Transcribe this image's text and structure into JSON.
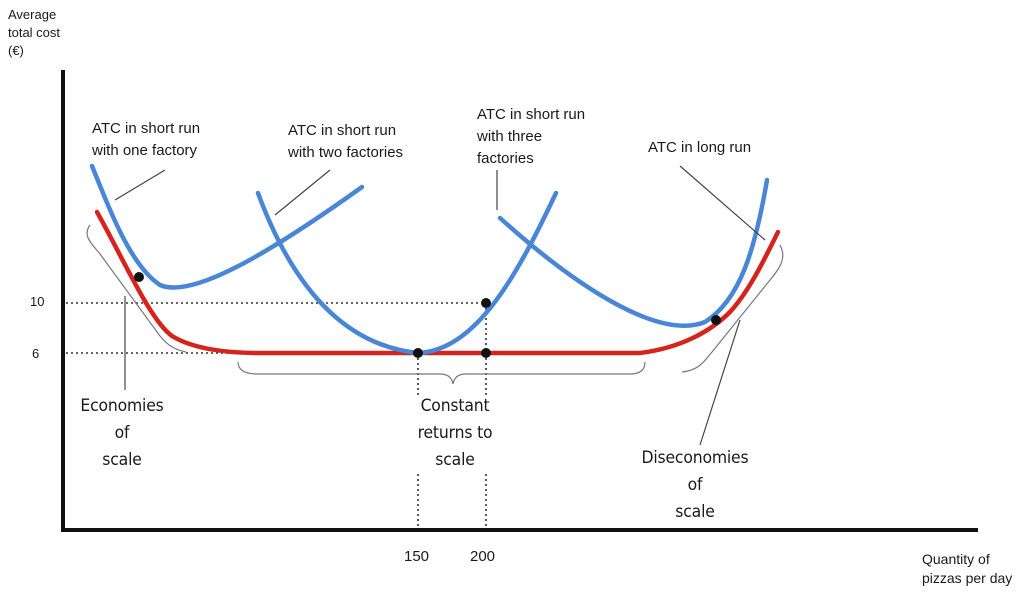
{
  "colors": {
    "short_run": "#4a86d6",
    "long_run": "#d4241c",
    "axis": "#111111",
    "dots": "#111111"
  },
  "y_axis": {
    "title_lines": [
      "Average",
      "total cost",
      "(€)"
    ],
    "ticks": [
      "10",
      "6"
    ]
  },
  "x_axis": {
    "title_lines": [
      "Quantity of",
      "pizzas per day"
    ],
    "ticks": [
      "150",
      "200"
    ]
  },
  "curve_labels": {
    "sr_one": [
      "ATC in short run",
      "with one factory"
    ],
    "sr_two": [
      "ATC in short run",
      "with two factories"
    ],
    "sr_three": [
      "ATC in short run",
      "with three",
      "factories"
    ],
    "long_run": [
      "ATC in long run"
    ]
  },
  "region_labels": {
    "economies": [
      "Economies",
      "of",
      "scale"
    ],
    "constant": [
      "Constant",
      "returns to",
      "scale"
    ],
    "diseconomies": [
      "Diseconomies",
      "of",
      "scale"
    ]
  },
  "curves": {
    "short_run_count": 3,
    "long_run_count": 1,
    "marked_points": 5
  }
}
